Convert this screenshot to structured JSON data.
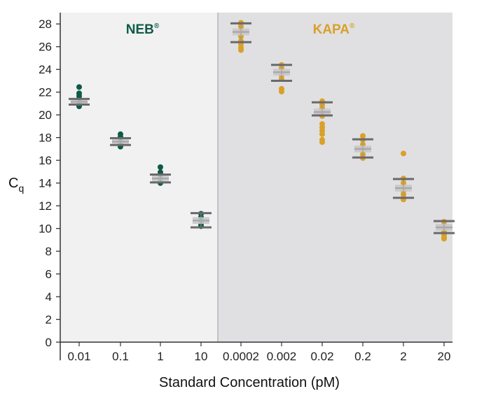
{
  "chart_data": {
    "type": "scatter",
    "subtype": "dot-plot-with-mean-and-sd",
    "xlabel": "Standard Concentration (pM)",
    "ylabel_main": "C",
    "ylabel_sub": "q",
    "ylim": [
      0,
      29
    ],
    "yticks": [
      0,
      2,
      4,
      6,
      8,
      10,
      12,
      14,
      16,
      18,
      20,
      22,
      24,
      26,
      28
    ],
    "groups": [
      {
        "name": "NEB",
        "label": "NEB",
        "mark": "®",
        "color": "#0f5a46",
        "background": "#f1f1f1",
        "categories": [
          {
            "label": "0.01",
            "mean": 21.15,
            "sd_upper": 21.4,
            "sd_lower": 20.9,
            "points": [
              22.45,
              21.9,
              21.65,
              21.4,
              21.15,
              21.0,
              20.85,
              20.75
            ]
          },
          {
            "label": "0.1",
            "mean": 17.65,
            "sd_upper": 17.95,
            "sd_lower": 17.35,
            "points": [
              18.3,
              18.05,
              17.8,
              17.6,
              17.45,
              17.3,
              17.2
            ]
          },
          {
            "label": "1",
            "mean": 14.4,
            "sd_upper": 14.75,
            "sd_lower": 14.05,
            "points": [
              15.4,
              14.95,
              14.75,
              14.5,
              14.3,
              14.15,
              14.0
            ]
          },
          {
            "label": "10",
            "mean": 10.7,
            "sd_upper": 11.35,
            "sd_lower": 10.1,
            "points": [
              11.3,
              11.0,
              10.8,
              10.6,
              10.4,
              10.2
            ]
          }
        ]
      },
      {
        "name": "KAPA",
        "label": "KAPA",
        "mark": "®",
        "color": "#d9a02a",
        "background": "#e0e0e2",
        "categories": [
          {
            "label": "0.0002",
            "mean": 27.3,
            "sd_upper": 28.05,
            "sd_lower": 26.4,
            "points": [
              28.1,
              27.8,
              27.5,
              27.2,
              26.9,
              26.5,
              26.2,
              25.9,
              25.7
            ]
          },
          {
            "label": "0.002",
            "mean": 23.75,
            "sd_upper": 24.4,
            "sd_lower": 23.0,
            "points": [
              24.4,
              24.1,
              23.8,
              23.5,
              23.2,
              22.3,
              22.05
            ]
          },
          {
            "label": "0.02",
            "mean": 20.25,
            "sd_upper": 21.1,
            "sd_lower": 19.95,
            "points": [
              21.2,
              20.9,
              20.6,
              20.3,
              20.1,
              19.9,
              19.2,
              18.9,
              18.6,
              18.3,
              17.8,
              17.6
            ]
          },
          {
            "label": "0.2",
            "mean": 17.0,
            "sd_upper": 17.85,
            "sd_lower": 16.25,
            "points": [
              18.15,
              17.8,
              17.4,
              17.1,
              16.8,
              16.5,
              16.2
            ]
          },
          {
            "label": "2",
            "mean": 13.55,
            "sd_upper": 14.35,
            "sd_lower": 12.7,
            "points": [
              16.6,
              14.4,
              14.0,
              13.6,
              13.3,
              13.0,
              12.7,
              12.55
            ]
          },
          {
            "label": "20",
            "mean": 10.1,
            "sd_upper": 10.65,
            "sd_lower": 9.6,
            "points": [
              10.6,
              10.3,
              10.0,
              9.7,
              9.4,
              9.2,
              9.1
            ]
          }
        ]
      }
    ]
  }
}
